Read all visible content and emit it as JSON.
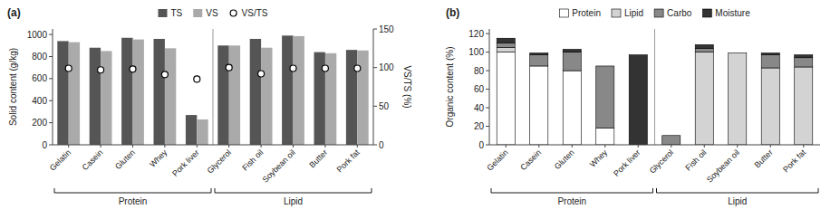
{
  "chart_data": [
    {
      "type": "bar",
      "title": "(a)",
      "categories": [
        "Gelatin",
        "Casein",
        "Gluten",
        "Whey",
        "Pork liver",
        "Glycerol",
        "Fish oil",
        "Soybean oil",
        "Butter",
        "Pork fat"
      ],
      "series": [
        {
          "name": "TS",
          "type": "bar",
          "color": "#555555",
          "values": [
            940,
            880,
            970,
            960,
            270,
            900,
            960,
            990,
            840,
            860
          ]
        },
        {
          "name": "VS",
          "type": "bar",
          "color": "#aaaaaa",
          "values": [
            930,
            850,
            955,
            875,
            230,
            900,
            880,
            985,
            830,
            855
          ]
        },
        {
          "name": "VS/TS",
          "type": "scatter",
          "axis": "y2",
          "marker": "circle",
          "values": [
            99,
            97,
            98,
            91,
            85,
            100,
            92,
            99,
            99,
            99
          ]
        }
      ],
      "ylabel": "Solid content (g/kg)",
      "y2label": "VS/TS (%)",
      "ylim": [
        0,
        1050
      ],
      "yticks": [
        0,
        200,
        400,
        600,
        800,
        1000
      ],
      "y2lim": [
        0,
        150
      ],
      "y2ticks": [
        0,
        50,
        100,
        150
      ],
      "annotations": [
        {
          "text": "Protein",
          "from": "Gelatin",
          "to": "Pork liver"
        },
        {
          "text": "Lipid",
          "from": "Glycerol",
          "to": "Pork fat"
        }
      ],
      "legend": "top",
      "grid": false
    },
    {
      "type": "bar",
      "stacked": true,
      "title": "(b)",
      "categories": [
        "Gelatin",
        "Casein",
        "Gluten",
        "Whey",
        "Pork liver",
        "Glycerol",
        "Fish oil",
        "Soybean oil",
        "Butter",
        "Pork fat"
      ],
      "series": [
        {
          "name": "Protein",
          "color": "#ffffff",
          "values": [
            100,
            85,
            80,
            18,
            0,
            0,
            0,
            0,
            0,
            0
          ]
        },
        {
          "name": "Lipid",
          "color": "#d3d3d3",
          "values": [
            5,
            0,
            0,
            0,
            0,
            0,
            100,
            99,
            83,
            84
          ]
        },
        {
          "name": "Carbo",
          "color": "#888888",
          "values": [
            5,
            12,
            20,
            67,
            0,
            10,
            4,
            0,
            14,
            10
          ]
        },
        {
          "name": "Moisture",
          "color": "#333333",
          "values": [
            5,
            2,
            3,
            0,
            97,
            0,
            4,
            0,
            2,
            3
          ]
        }
      ],
      "ylabel": "Organic content (%)",
      "ylim": [
        0,
        125
      ],
      "yticks": [
        0,
        20,
        40,
        60,
        80,
        100,
        120
      ],
      "annotations": [
        {
          "text": "Protein",
          "from": "Gelatin",
          "to": "Pork liver"
        },
        {
          "text": "Lipid",
          "from": "Glycerol",
          "to": "Pork fat"
        }
      ],
      "legend": "top",
      "grid": false
    }
  ]
}
